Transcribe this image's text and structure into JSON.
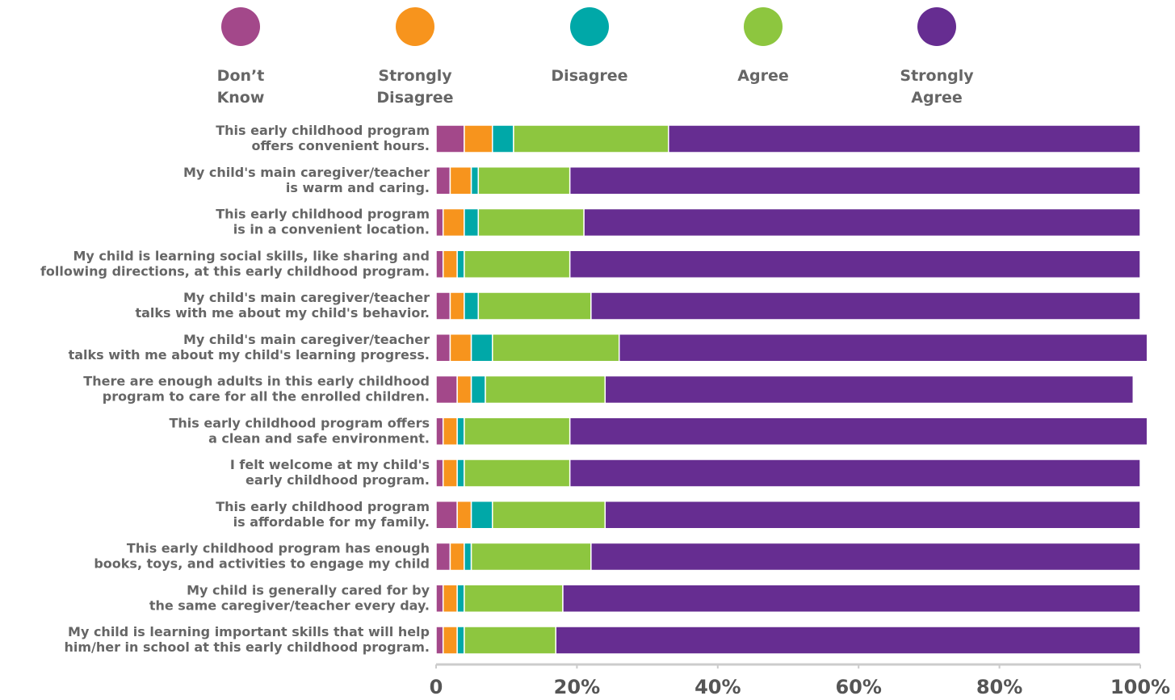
{
  "chart_data": {
    "type": "stacked-bar",
    "categories": [
      [
        "This early childhood program",
        "offers convenient hours."
      ],
      [
        "My child's main caregiver/teacher",
        "is warm and caring."
      ],
      [
        "This early childhood program",
        "is in a convenient location."
      ],
      [
        "My child is learning social skills, like sharing and",
        "following directions, at this early childhood program."
      ],
      [
        "My child's main caregiver/teacher",
        "talks with me about my child's behavior."
      ],
      [
        "My child's main caregiver/teacher",
        "talks with me about my child's learning progress."
      ],
      [
        "There are enough adults in this early childhood",
        "program to care for all the enrolled children."
      ],
      [
        "This early childhood program offers",
        "a clean and safe environment."
      ],
      [
        "I felt welcome at my child's",
        "early childhood program."
      ],
      [
        "This early childhood program",
        "is affordable for my family."
      ],
      [
        "This early childhood program has enough",
        "books, toys, and activities to engage my child"
      ],
      [
        "My child is generally cared for by",
        "the same caregiver/teacher every day."
      ],
      [
        "My child is learning important skills that will help",
        "him/her in school at this early childhood program."
      ]
    ],
    "series": [
      {
        "name": "Don’t Know",
        "color": "#a3488a",
        "values": [
          4,
          2,
          1,
          1,
          2,
          2,
          3,
          1,
          1,
          3,
          2,
          1,
          1
        ]
      },
      {
        "name": "Strongly Disagree",
        "color": "#f7941d",
        "values": [
          4,
          3,
          3,
          2,
          2,
          3,
          2,
          2,
          2,
          2,
          2,
          2,
          2
        ]
      },
      {
        "name": "Disagree",
        "color": "#00a8a8",
        "values": [
          3,
          1,
          2,
          1,
          2,
          3,
          2,
          1,
          1,
          3,
          1,
          1,
          1
        ]
      },
      {
        "name": "Agree",
        "color": "#8dc63f",
        "values": [
          22,
          13,
          15,
          15,
          16,
          18,
          17,
          15,
          15,
          16,
          17,
          14,
          13
        ]
      },
      {
        "name": "Strongly Agree",
        "color": "#662d91",
        "values": [
          67,
          81,
          79,
          81,
          78,
          75,
          75,
          82,
          81,
          76,
          78,
          82,
          83
        ]
      }
    ],
    "xlim": [
      0,
      100
    ],
    "xticks": [
      0,
      {
        "value": 20,
        "label": "20%"
      },
      {
        "value": 40,
        "label": "40%"
      },
      {
        "value": 60,
        "label": "60%"
      },
      {
        "value": 80,
        "label": "80%"
      },
      {
        "value": 100,
        "label": "100%"
      }
    ]
  }
}
